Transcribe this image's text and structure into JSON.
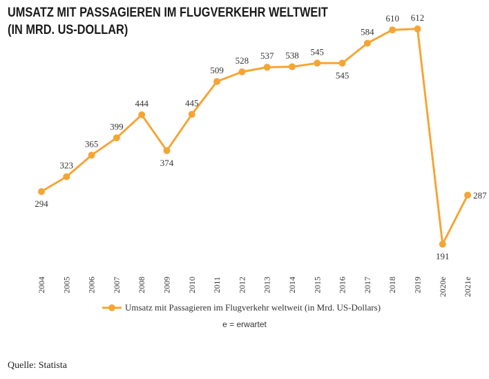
{
  "title_line1": "UMSATZ MIT PASSAGIEREN IM FLUGVERKEHR WELTWEIT",
  "title_line2": "(IN MRD. US-DOLLAR)",
  "legend_note": "e = erwartet",
  "source": "Quelle: Statista",
  "colors": {
    "series": "#f5a535",
    "text": "#333333"
  },
  "chart_data": {
    "type": "line",
    "title": "UMSATZ MIT PASSAGIEREN IM FLUGVERKEHR WELTWEIT (IN MRD. US-DOLLAR)",
    "categories": [
      "2004",
      "2005",
      "2006",
      "2007",
      "2008",
      "2009",
      "2010",
      "2011",
      "2012",
      "2013",
      "2014",
      "2015",
      "2016",
      "2017",
      "2018",
      "2019",
      "2020e",
      "2021e"
    ],
    "series": [
      {
        "name": "Umsatz mit Passagieren im Flugverkehr weltweit (in Mrd. US-Dollars)",
        "values": [
          294,
          323,
          365,
          399,
          444,
          374,
          445,
          509,
          528,
          537,
          538,
          545,
          545,
          584,
          610,
          612,
          191,
          287
        ],
        "labels": [
          "294",
          "323",
          "365",
          "399",
          "444",
          "374",
          "445",
          "509",
          "528",
          "537",
          "538",
          "545",
          "545",
          "584",
          "610",
          "612",
          "191",
          "287"
        ]
      }
    ],
    "xlabel": "",
    "ylabel": "",
    "ylim": [
      150,
      700
    ],
    "grid": false,
    "legend": "bottom"
  }
}
